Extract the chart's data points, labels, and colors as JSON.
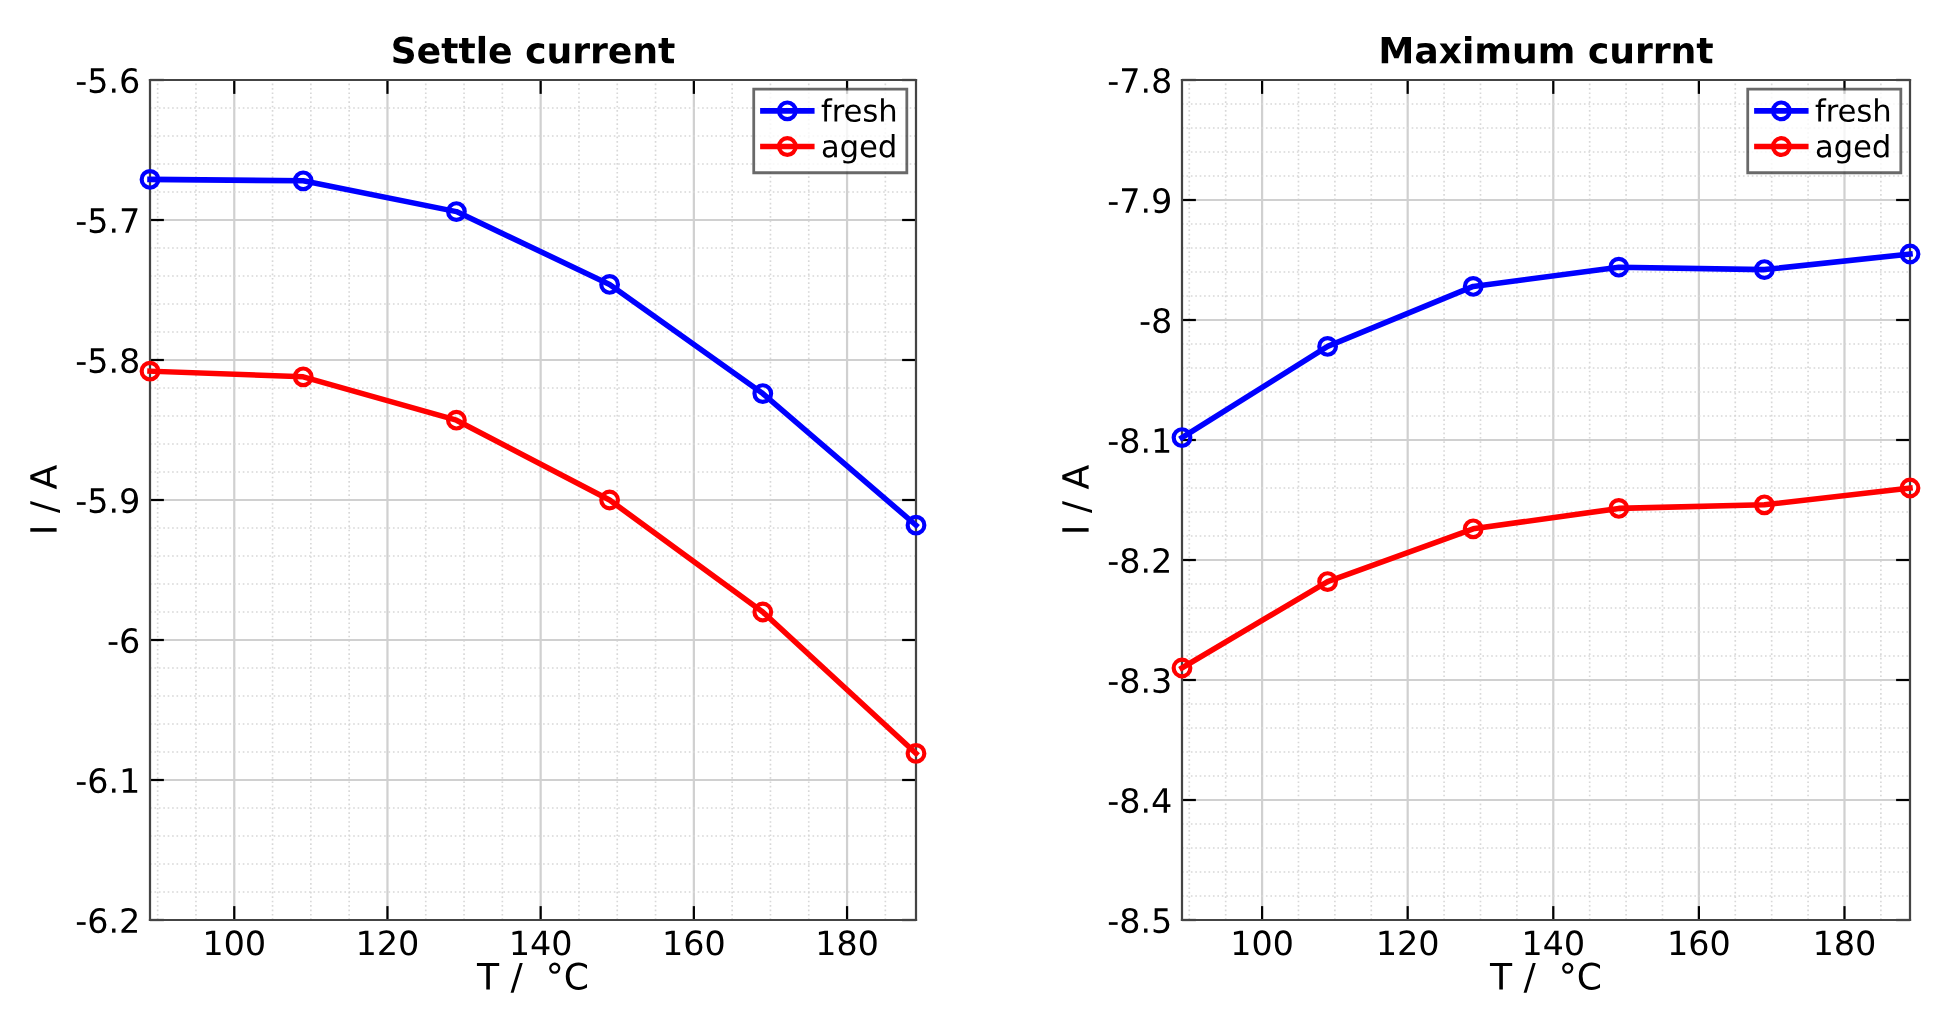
{
  "chart_data": [
    {
      "type": "line",
      "title": "Settle current",
      "xlabel": "T /  °C",
      "ylabel": "I / A",
      "x": [
        89,
        109,
        129,
        149,
        169,
        189
      ],
      "xlim": [
        89,
        189
      ],
      "xticks": [
        100,
        120,
        140,
        160,
        180
      ],
      "ylim": [
        -6.2,
        -5.6
      ],
      "yticks": [
        -6.2,
        -6.1,
        -6,
        -5.9,
        -5.8,
        -5.7,
        -5.6
      ],
      "grid": true,
      "legend": "top right",
      "marker": "circle",
      "line_style": "solid",
      "series": [
        {
          "name": "fresh",
          "color": "#0000ff",
          "values": [
            -5.671,
            -5.672,
            -5.694,
            -5.746,
            -5.824,
            -5.918
          ]
        },
        {
          "name": "aged",
          "color": "#ff0000",
          "values": [
            -5.808,
            -5.812,
            -5.843,
            -5.9,
            -5.98,
            -6.081
          ]
        }
      ]
    },
    {
      "type": "line",
      "title": "Maximum currnt",
      "xlabel": "T /  °C",
      "ylabel": "I / A",
      "x": [
        89,
        109,
        129,
        149,
        169,
        189
      ],
      "xlim": [
        89,
        189
      ],
      "xticks": [
        100,
        120,
        140,
        160,
        180
      ],
      "ylim": [
        -8.5,
        -7.8
      ],
      "yticks": [
        -8.5,
        -8.4,
        -8.3,
        -8.2,
        -8.1,
        -8,
        -7.9,
        -7.8
      ],
      "grid": true,
      "legend": "top right",
      "marker": "circle",
      "line_style": "solid",
      "series": [
        {
          "name": "fresh",
          "color": "#0000ff",
          "values": [
            -8.098,
            -8.022,
            -7.972,
            -7.956,
            -7.958,
            -7.945
          ]
        },
        {
          "name": "aged",
          "color": "#ff0000",
          "values": [
            -8.29,
            -8.218,
            -8.174,
            -8.157,
            -8.154,
            -8.14
          ]
        }
      ]
    }
  ]
}
